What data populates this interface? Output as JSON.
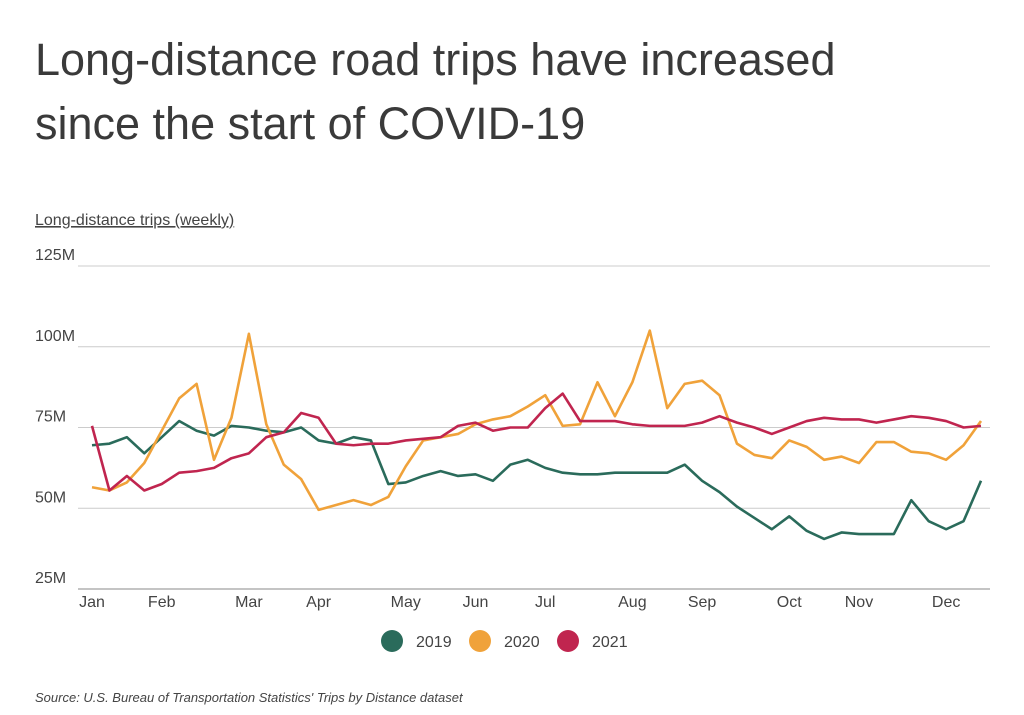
{
  "chart_data": {
    "type": "line",
    "title": "Long-distance road trips have increased since the start of COVID-19",
    "y_axis_label": "Long-distance trips (weekly)",
    "source": "Source:  U.S. Bureau of Transportation Statistics' Trips by Distance dataset",
    "categories": [
      "Jan",
      null,
      null,
      null,
      "Feb",
      null,
      null,
      null,
      null,
      "Mar",
      null,
      null,
      null,
      "Apr",
      null,
      null,
      null,
      null,
      "May",
      null,
      null,
      null,
      "Jun",
      null,
      null,
      null,
      "Jul",
      null,
      null,
      null,
      null,
      "Aug",
      null,
      null,
      null,
      "Sep",
      null,
      null,
      null,
      null,
      "Oct",
      null,
      null,
      null,
      "Nov",
      null,
      null,
      null,
      null,
      "Dec",
      null,
      null
    ],
    "ylim": [
      25,
      125
    ],
    "yticks": [
      {
        "value": 25,
        "label": "25M"
      },
      {
        "value": 50,
        "label": "50M"
      },
      {
        "value": 75,
        "label": "75M"
      },
      {
        "value": 100,
        "label": "100M"
      },
      {
        "value": 125,
        "label": "125M"
      }
    ],
    "grid": true,
    "legend": "bottom",
    "series": [
      {
        "name": "2019",
        "color": "#2a6b5b",
        "values": [
          69.5,
          70,
          72,
          67,
          72,
          77,
          74,
          72.5,
          75.5,
          75,
          74,
          73.5,
          75,
          71,
          70,
          72,
          71,
          57.5,
          58,
          60,
          61.5,
          60,
          60.5,
          58.5,
          63.5,
          65,
          62.5,
          61,
          60.5,
          60.5,
          61,
          61,
          61,
          61,
          63.5,
          58.5,
          55,
          50.5,
          47,
          43.5,
          47.5,
          43,
          40.5,
          42.5,
          42,
          42,
          42,
          52.5,
          46,
          43.5,
          46,
          58.5
        ]
      },
      {
        "name": "2020",
        "color": "#f0a23a",
        "values": [
          56.5,
          55.5,
          58,
          64,
          74,
          84,
          88.5,
          65,
          78,
          104,
          76,
          63.5,
          59,
          49.5,
          51,
          52.5,
          51,
          53.5,
          63,
          71,
          72,
          73,
          76,
          77.5,
          78.5,
          81.5,
          85,
          75.5,
          76,
          89,
          78.5,
          89,
          105,
          81,
          88.5,
          89.5,
          85,
          70,
          66.5,
          65.5,
          71,
          69,
          65,
          66,
          64,
          70.5,
          70.5,
          67.5,
          67,
          65,
          69.5,
          77
        ]
      },
      {
        "name": "2021",
        "color": "#c0254f",
        "values": [
          75.5,
          55.5,
          60,
          55.5,
          57.5,
          61,
          61.5,
          62.5,
          65.5,
          67,
          72,
          73.5,
          79.5,
          78,
          70,
          69.5,
          70,
          70,
          71,
          71.5,
          72,
          75.5,
          76.5,
          74,
          75,
          75,
          81,
          85.5,
          77,
          77,
          77,
          76,
          75.5,
          75.5,
          75.5,
          76.5,
          78.5,
          76.5,
          75,
          73,
          75,
          77,
          78,
          77.5,
          77.5,
          76.5,
          77.5,
          78.5,
          78,
          77,
          75,
          75.5
        ]
      }
    ]
  }
}
